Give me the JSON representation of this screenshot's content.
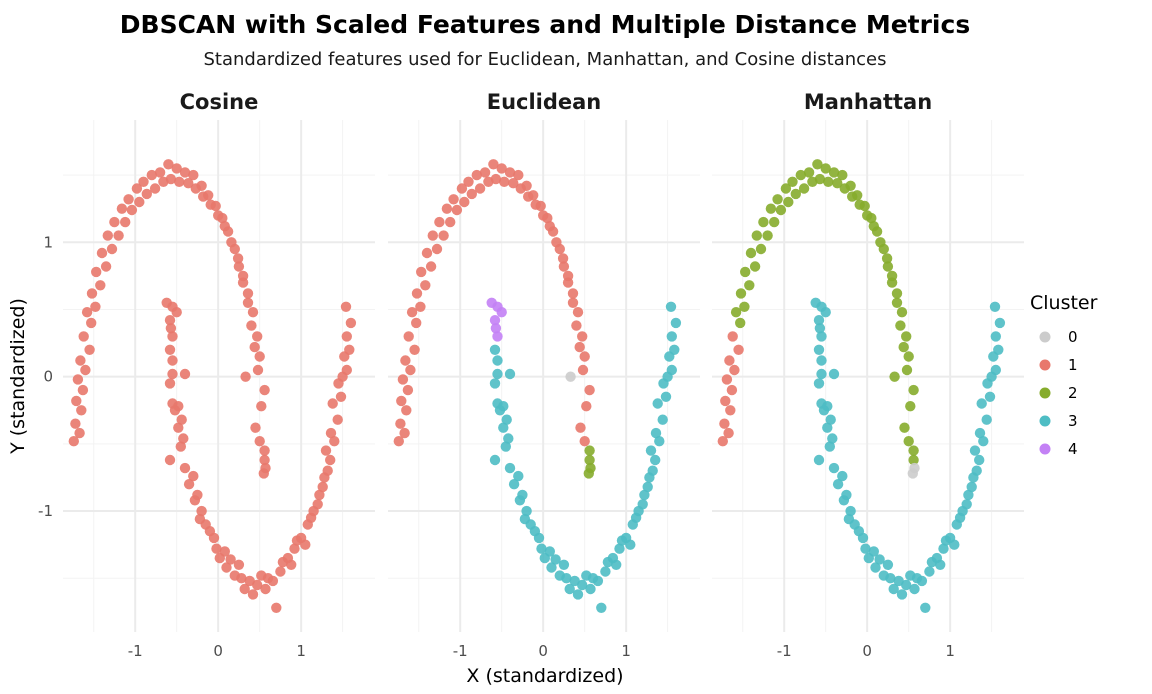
{
  "chart_data": {
    "type": "scatter",
    "title": "DBSCAN with Scaled Features and Multiple Distance Metrics",
    "subtitle": "Standardized features used for Euclidean, Manhattan, and Cosine distances",
    "xlabel": "X (standardized)",
    "ylabel": "Y (standardized)",
    "xlim": [
      -1.87,
      1.89
    ],
    "ylim": [
      -1.9,
      1.91
    ],
    "x_ticks": [
      {
        "v": -1,
        "label": "-1"
      },
      {
        "v": 0,
        "label": "0"
      },
      {
        "v": 1,
        "label": "1"
      }
    ],
    "y_ticks": [
      {
        "v": 1,
        "label": "1"
      },
      {
        "v": 0,
        "label": "0"
      },
      {
        "v": -1,
        "label": "-1"
      }
    ],
    "grid": true,
    "facets": [
      "Cosine",
      "Euclidean",
      "Manhattan"
    ],
    "legend": {
      "title": "Cluster",
      "position": "right",
      "entries": [
        {
          "label": "0",
          "color": "#CCCCCC"
        },
        {
          "label": "1",
          "color": "#E8786C"
        },
        {
          "label": "2",
          "color": "#86AC2C"
        },
        {
          "label": "3",
          "color": "#4EBDC4"
        },
        {
          "label": "4",
          "color": "#C381F5"
        }
      ]
    },
    "point_columns": [
      "x",
      "y",
      "cluster_cosine",
      "cluster_euclidean",
      "cluster_manhattan"
    ],
    "points": [
      [
        0.56,
        -0.55,
        1,
        2,
        2
      ],
      [
        0.56,
        -0.62,
        1,
        2,
        2
      ],
      [
        0.57,
        -0.68,
        1,
        2,
        0
      ],
      [
        0.55,
        -0.72,
        1,
        2,
        0
      ],
      [
        0.5,
        -0.48,
        1,
        1,
        2
      ],
      [
        0.45,
        -0.38,
        1,
        1,
        2
      ],
      [
        0.52,
        -0.22,
        1,
        1,
        2
      ],
      [
        0.56,
        -0.1,
        1,
        1,
        2
      ],
      [
        0.48,
        0.05,
        1,
        1,
        2
      ],
      [
        0.44,
        0.22,
        1,
        1,
        2
      ],
      [
        0.5,
        0.15,
        1,
        1,
        2
      ],
      [
        0.4,
        0.38,
        1,
        1,
        2
      ],
      [
        0.47,
        0.3,
        1,
        1,
        2
      ],
      [
        0.36,
        0.55,
        1,
        1,
        2
      ],
      [
        0.42,
        0.48,
        1,
        1,
        2
      ],
      [
        0.3,
        0.7,
        1,
        1,
        2
      ],
      [
        0.36,
        0.62,
        1,
        1,
        2
      ],
      [
        0.25,
        0.82,
        1,
        1,
        2
      ],
      [
        0.3,
        0.75,
        1,
        1,
        2
      ],
      [
        0.2,
        0.95,
        1,
        1,
        2
      ],
      [
        0.24,
        0.88,
        1,
        1,
        2
      ],
      [
        0.12,
        1.08,
        1,
        1,
        2
      ],
      [
        0.16,
        1.0,
        1,
        1,
        2
      ],
      [
        0.05,
        1.18,
        1,
        1,
        2
      ],
      [
        0.08,
        1.12,
        1,
        1,
        2
      ],
      [
        -0.03,
        1.27,
        1,
        1,
        2
      ],
      [
        0.0,
        1.2,
        1,
        1,
        2
      ],
      [
        -0.12,
        1.35,
        1,
        1,
        2
      ],
      [
        -0.09,
        1.28,
        1,
        1,
        2
      ],
      [
        -0.2,
        1.42,
        1,
        1,
        2
      ],
      [
        -0.18,
        1.34,
        1,
        1,
        2
      ],
      [
        -0.3,
        1.5,
        1,
        1,
        2
      ],
      [
        -0.27,
        1.4,
        1,
        1,
        2
      ],
      [
        -0.4,
        1.52,
        1,
        1,
        2
      ],
      [
        -0.36,
        1.44,
        1,
        1,
        2
      ],
      [
        -0.5,
        1.55,
        1,
        1,
        2
      ],
      [
        -0.47,
        1.45,
        1,
        1,
        2
      ],
      [
        -0.6,
        1.58,
        1,
        1,
        2
      ],
      [
        -0.57,
        1.47,
        1,
        1,
        2
      ],
      [
        -0.7,
        1.52,
        1,
        1,
        2
      ],
      [
        -0.66,
        1.45,
        1,
        1,
        2
      ],
      [
        -0.8,
        1.5,
        1,
        1,
        2
      ],
      [
        -0.76,
        1.4,
        1,
        1,
        2
      ],
      [
        -0.9,
        1.45,
        1,
        1,
        2
      ],
      [
        -0.86,
        1.36,
        1,
        1,
        2
      ],
      [
        -0.98,
        1.4,
        1,
        1,
        2
      ],
      [
        -0.95,
        1.3,
        1,
        1,
        2
      ],
      [
        -1.08,
        1.32,
        1,
        1,
        2
      ],
      [
        -1.04,
        1.24,
        1,
        1,
        2
      ],
      [
        -1.16,
        1.25,
        1,
        1,
        2
      ],
      [
        -1.12,
        1.15,
        1,
        1,
        2
      ],
      [
        -1.25,
        1.15,
        1,
        1,
        2
      ],
      [
        -1.2,
        1.05,
        1,
        1,
        2
      ],
      [
        -1.33,
        1.05,
        1,
        1,
        2
      ],
      [
        -1.28,
        0.95,
        1,
        1,
        2
      ],
      [
        -1.4,
        0.92,
        1,
        1,
        2
      ],
      [
        -1.35,
        0.82,
        1,
        1,
        2
      ],
      [
        -1.47,
        0.78,
        1,
        1,
        2
      ],
      [
        -1.42,
        0.68,
        1,
        1,
        2
      ],
      [
        -1.52,
        0.62,
        1,
        1,
        2
      ],
      [
        -1.48,
        0.52,
        1,
        1,
        2
      ],
      [
        -1.58,
        0.48,
        1,
        1,
        2
      ],
      [
        -1.53,
        0.4,
        1,
        1,
        2
      ],
      [
        -1.62,
        0.3,
        1,
        1,
        1
      ],
      [
        -1.55,
        0.2,
        1,
        1,
        1
      ],
      [
        -1.66,
        0.12,
        1,
        1,
        1
      ],
      [
        -1.6,
        0.05,
        1,
        1,
        1
      ],
      [
        -1.69,
        -0.02,
        1,
        1,
        1
      ],
      [
        -1.63,
        -0.1,
        1,
        1,
        1
      ],
      [
        -1.71,
        -0.18,
        1,
        1,
        1
      ],
      [
        -1.65,
        -0.25,
        1,
        1,
        1
      ],
      [
        -1.72,
        -0.35,
        1,
        1,
        1
      ],
      [
        -1.67,
        -0.42,
        1,
        1,
        1
      ],
      [
        -1.74,
        -0.48,
        1,
        1,
        1
      ],
      [
        0.33,
        0.0,
        1,
        0,
        2
      ],
      [
        -0.62,
        0.55,
        1,
        4,
        3
      ],
      [
        -0.55,
        0.52,
        1,
        4,
        3
      ],
      [
        -0.5,
        0.48,
        1,
        4,
        3
      ],
      [
        -0.58,
        0.42,
        1,
        4,
        3
      ],
      [
        -0.57,
        0.36,
        1,
        4,
        3
      ],
      [
        -0.55,
        0.3,
        1,
        4,
        3
      ],
      [
        -0.58,
        0.2,
        1,
        3,
        3
      ],
      [
        -0.55,
        0.12,
        1,
        3,
        3
      ],
      [
        -0.55,
        0.02,
        1,
        3,
        3
      ],
      [
        -0.4,
        0.02,
        1,
        3,
        3
      ],
      [
        -0.58,
        -0.05,
        1,
        3,
        3
      ],
      [
        -0.55,
        -0.2,
        1,
        3,
        3
      ],
      [
        -0.52,
        -0.25,
        1,
        3,
        3
      ],
      [
        -0.48,
        -0.22,
        1,
        3,
        3
      ],
      [
        -0.48,
        -0.38,
        1,
        3,
        3
      ],
      [
        -0.44,
        -0.32,
        1,
        3,
        3
      ],
      [
        -0.45,
        -0.52,
        1,
        3,
        3
      ],
      [
        -0.42,
        -0.46,
        1,
        3,
        3
      ],
      [
        -0.4,
        -0.68,
        1,
        3,
        3
      ],
      [
        -0.58,
        -0.62,
        1,
        3,
        3
      ],
      [
        -0.35,
        -0.8,
        1,
        3,
        3
      ],
      [
        -0.3,
        -0.74,
        1,
        3,
        3
      ],
      [
        -0.28,
        -0.92,
        1,
        3,
        3
      ],
      [
        -0.25,
        -0.88,
        1,
        3,
        3
      ],
      [
        -0.2,
        -1.0,
        1,
        3,
        3
      ],
      [
        -0.22,
        -1.06,
        1,
        3,
        3
      ],
      [
        -0.15,
        -1.1,
        1,
        3,
        3
      ],
      [
        -0.1,
        -1.15,
        1,
        3,
        3
      ],
      [
        -0.05,
        -1.2,
        1,
        3,
        3
      ],
      [
        -0.02,
        -1.28,
        1,
        3,
        3
      ],
      [
        0.02,
        -1.35,
        1,
        3,
        3
      ],
      [
        0.08,
        -1.3,
        1,
        3,
        3
      ],
      [
        0.1,
        -1.42,
        1,
        3,
        3
      ],
      [
        0.15,
        -1.36,
        1,
        3,
        3
      ],
      [
        0.2,
        -1.48,
        1,
        3,
        3
      ],
      [
        0.25,
        -1.4,
        1,
        3,
        3
      ],
      [
        0.28,
        -1.5,
        1,
        3,
        3
      ],
      [
        0.32,
        -1.58,
        1,
        3,
        3
      ],
      [
        0.38,
        -1.52,
        1,
        3,
        3
      ],
      [
        0.42,
        -1.62,
        1,
        3,
        3
      ],
      [
        0.47,
        -1.55,
        1,
        3,
        3
      ],
      [
        0.52,
        -1.48,
        1,
        3,
        3
      ],
      [
        0.57,
        -1.58,
        1,
        3,
        3
      ],
      [
        0.6,
        -1.5,
        1,
        3,
        3
      ],
      [
        0.66,
        -1.52,
        1,
        3,
        3
      ],
      [
        0.7,
        -1.72,
        1,
        3,
        3
      ],
      [
        0.75,
        -1.45,
        1,
        3,
        3
      ],
      [
        0.78,
        -1.38,
        1,
        3,
        3
      ],
      [
        0.84,
        -1.35,
        1,
        3,
        3
      ],
      [
        0.88,
        -1.4,
        1,
        3,
        3
      ],
      [
        0.92,
        -1.28,
        1,
        3,
        3
      ],
      [
        0.95,
        -1.22,
        1,
        3,
        3
      ],
      [
        1.0,
        -1.2,
        1,
        3,
        3
      ],
      [
        1.05,
        -1.25,
        1,
        3,
        3
      ],
      [
        1.08,
        -1.1,
        1,
        3,
        3
      ],
      [
        1.12,
        -1.05,
        1,
        3,
        3
      ],
      [
        1.15,
        -1.0,
        1,
        3,
        3
      ],
      [
        1.2,
        -0.95,
        1,
        3,
        3
      ],
      [
        1.22,
        -0.88,
        1,
        3,
        3
      ],
      [
        1.26,
        -0.82,
        1,
        3,
        3
      ],
      [
        1.28,
        -0.75,
        1,
        3,
        3
      ],
      [
        1.32,
        -0.7,
        1,
        3,
        3
      ],
      [
        1.35,
        -0.62,
        1,
        3,
        3
      ],
      [
        1.3,
        -0.55,
        1,
        3,
        3
      ],
      [
        1.4,
        -0.48,
        1,
        3,
        3
      ],
      [
        1.36,
        -0.42,
        1,
        3,
        3
      ],
      [
        1.44,
        -0.32,
        1,
        3,
        3
      ],
      [
        1.38,
        -0.2,
        1,
        3,
        3
      ],
      [
        1.48,
        -0.15,
        1,
        3,
        3
      ],
      [
        1.45,
        -0.05,
        1,
        3,
        3
      ],
      [
        1.5,
        0.0,
        1,
        3,
        3
      ],
      [
        1.55,
        0.05,
        1,
        3,
        3
      ],
      [
        1.52,
        0.15,
        1,
        3,
        3
      ],
      [
        1.58,
        0.2,
        1,
        3,
        3
      ],
      [
        1.55,
        0.3,
        1,
        3,
        3
      ],
      [
        1.6,
        0.4,
        1,
        3,
        3
      ],
      [
        1.54,
        0.52,
        1,
        3,
        3
      ]
    ]
  }
}
